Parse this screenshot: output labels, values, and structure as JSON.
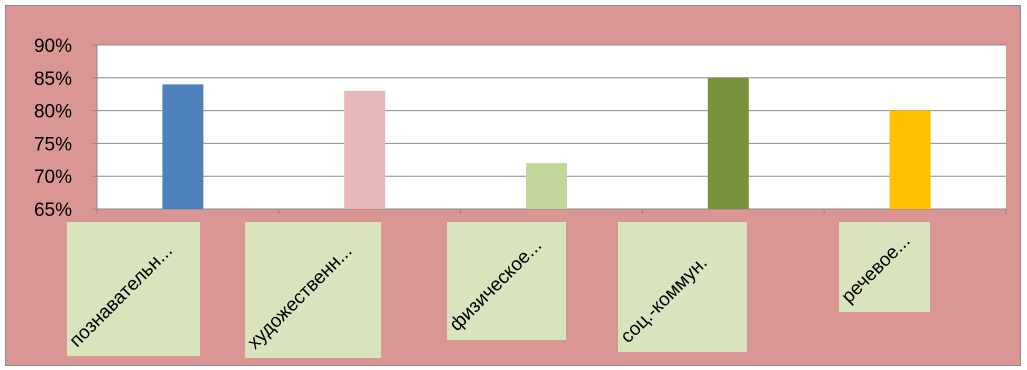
{
  "colors": {
    "background": "#d99694",
    "plot_area": "#ffffff",
    "gridline": "#8c8c8c",
    "label_box": "#d7e4bd"
  },
  "chart_data": {
    "type": "bar",
    "categories": [
      "познавательн...",
      "художественн...",
      "физическое...",
      "соц.-коммун.",
      "речевое..."
    ],
    "values": [
      84,
      83,
      72,
      85,
      80
    ],
    "bar_colors": [
      "#4f81bd",
      "#e6b9b8",
      "#c3d69b",
      "#77933c",
      "#ffc000"
    ],
    "y_ticks": [
      "65%",
      "70%",
      "75%",
      "80%",
      "85%",
      "90%"
    ],
    "ylim": [
      65,
      90
    ],
    "grid": true,
    "legend": "none",
    "title": "",
    "xlabel": "",
    "ylabel": ""
  }
}
